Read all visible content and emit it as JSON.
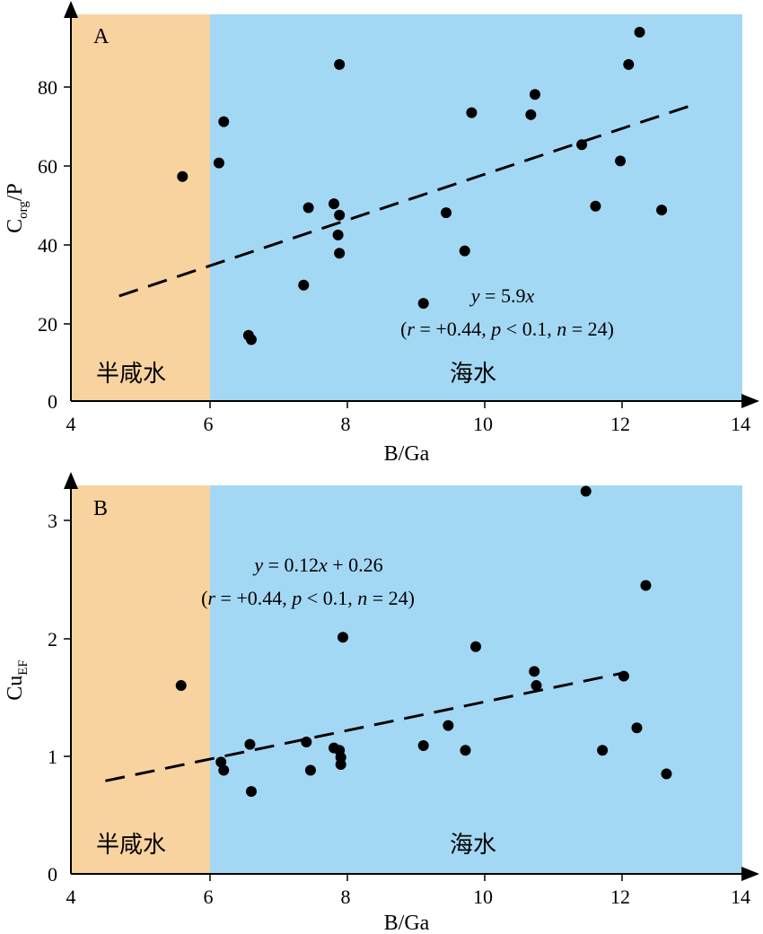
{
  "colors": {
    "brackish": "#f8d3a0",
    "seawater": "#a3d8f4",
    "marker": "#000000",
    "axis": "#000000"
  },
  "chart_data": [
    {
      "type": "scatter",
      "panel_label": "A",
      "xlabel": "B/Ga",
      "ylabel": {
        "base": "C",
        "subscript": "org",
        "suffix": "/P"
      },
      "xlim": [
        4,
        14
      ],
      "ylim": [
        0,
        98
      ],
      "xticks": [
        "4",
        "6",
        "8",
        "10",
        "12",
        "14"
      ],
      "yticks": [
        "0",
        "20",
        "40",
        "60",
        "80"
      ],
      "grid": false,
      "regions": [
        {
          "label": "半咸水",
          "x_range": [
            4,
            6.03
          ],
          "color": "#f8d3a0"
        },
        {
          "label": "海水",
          "x_range": [
            6.03,
            14
          ],
          "color": "#a3d8f4"
        }
      ],
      "points": [
        [
          5.62,
          57.7
        ],
        [
          6.15,
          61.2
        ],
        [
          6.22,
          71.8
        ],
        [
          6.58,
          16.9
        ],
        [
          6.62,
          15.8
        ],
        [
          7.38,
          29.8
        ],
        [
          7.45,
          49.7
        ],
        [
          7.82,
          50.7
        ],
        [
          7.88,
          42.7
        ],
        [
          7.9,
          86.5
        ],
        [
          7.9,
          47.8
        ],
        [
          7.9,
          38.0
        ],
        [
          9.12,
          25.1
        ],
        [
          9.45,
          48.4
        ],
        [
          9.72,
          38.6
        ],
        [
          9.82,
          74.1
        ],
        [
          10.68,
          73.6
        ],
        [
          10.74,
          78.8
        ],
        [
          11.42,
          65.9
        ],
        [
          11.62,
          50.1
        ],
        [
          11.98,
          61.7
        ],
        [
          12.1,
          86.5
        ],
        [
          12.26,
          94.8
        ],
        [
          12.58,
          49.1
        ]
      ],
      "fit": {
        "x": [
          4.7,
          13.05
        ],
        "y": [
          27.0,
          76.2
        ]
      },
      "equation": {
        "y": "y",
        "eq": " = 5.9",
        "x": "x"
      },
      "stats": {
        "open": "(",
        "r": "r",
        "r_val": " = +0.44, ",
        "p": "p",
        "p_val": " < 0.1, ",
        "n": "n",
        "n_val": " = 24)"
      }
    },
    {
      "type": "scatter",
      "panel_label": "B",
      "xlabel": "B/Ga",
      "ylabel": {
        "base": "Cu",
        "subscript": "EF",
        "suffix": ""
      },
      "xlim": [
        4,
        14
      ],
      "ylim": [
        0,
        3.3
      ],
      "xticks": [
        "4",
        "6",
        "8",
        "10",
        "12",
        "14"
      ],
      "yticks": [
        "0",
        "1",
        "2",
        "3"
      ],
      "grid": false,
      "regions": [
        {
          "label": "半咸水",
          "x_range": [
            4,
            6.03
          ],
          "color": "#f8d3a0"
        },
        {
          "label": "海水",
          "x_range": [
            6.03,
            14
          ],
          "color": "#a3d8f4"
        }
      ],
      "points": [
        [
          5.6,
          1.6
        ],
        [
          6.18,
          0.95
        ],
        [
          6.22,
          0.88
        ],
        [
          6.6,
          1.1
        ],
        [
          6.62,
          0.7
        ],
        [
          7.42,
          1.12
        ],
        [
          7.48,
          0.88
        ],
        [
          7.82,
          1.07
        ],
        [
          7.9,
          1.05
        ],
        [
          7.92,
          0.99
        ],
        [
          7.92,
          0.93
        ],
        [
          7.95,
          2.01
        ],
        [
          9.12,
          1.09
        ],
        [
          9.48,
          1.26
        ],
        [
          9.73,
          1.05
        ],
        [
          9.88,
          1.93
        ],
        [
          10.73,
          1.72
        ],
        [
          10.76,
          1.6
        ],
        [
          11.48,
          3.25
        ],
        [
          11.72,
          1.05
        ],
        [
          12.03,
          1.68
        ],
        [
          12.22,
          1.24
        ],
        [
          12.35,
          2.45
        ],
        [
          12.65,
          0.85
        ]
      ],
      "fit": {
        "x": [
          4.5,
          12.05
        ],
        "y": [
          0.79,
          1.71
        ]
      },
      "equation": {
        "y": "y",
        "eq": " = 0.12",
        "x": "x",
        "rest": " + 0.26"
      },
      "stats": {
        "open": "(",
        "r": "r",
        "r_val": " = +0.44, ",
        "p": "p",
        "p_val": " < 0.1, ",
        "n": "n",
        "n_val": " = 24)"
      }
    }
  ]
}
